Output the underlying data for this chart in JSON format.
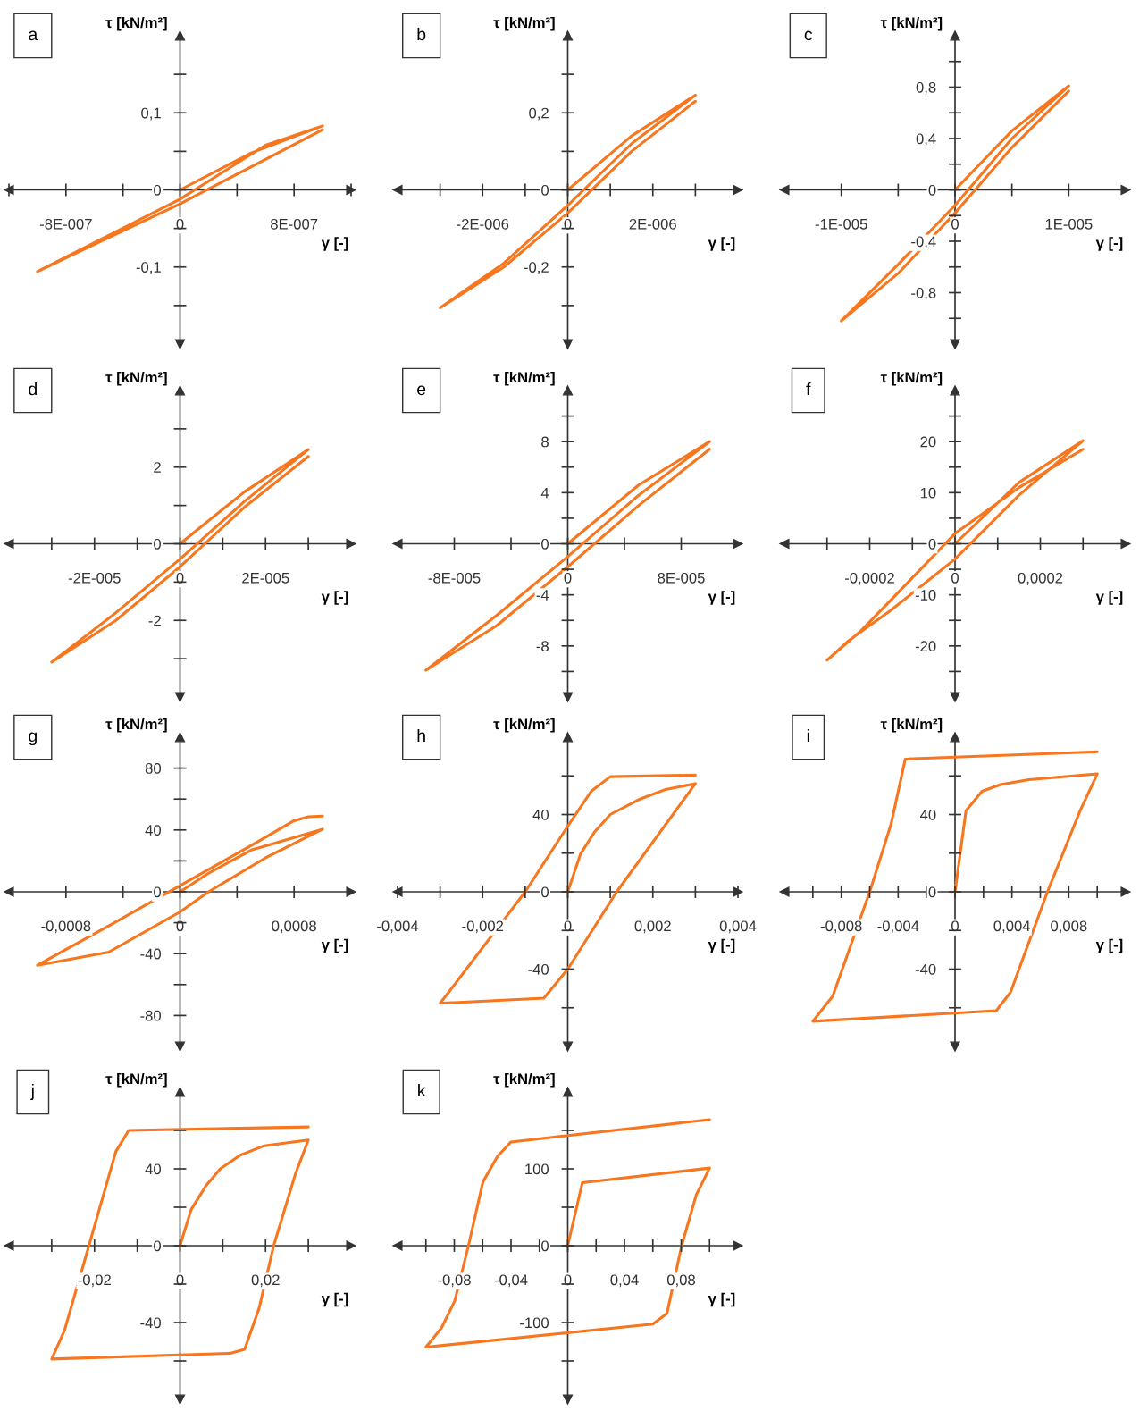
{
  "chart_data": [
    {
      "type": "line",
      "title": "a",
      "xlabel": "γ [-]",
      "ylabel": "τ [kN/m²]",
      "xlim": [
        -1.2e-06,
        1.2e-06
      ],
      "ylim": [
        -0.2,
        0.2
      ],
      "xticks": [
        {
          "value": -1.2e-06,
          "label": null
        },
        {
          "value": -8e-07,
          "label": "-8E-007"
        },
        {
          "value": -4e-07,
          "label": null
        },
        0,
        {
          "value": 4e-07,
          "label": null
        },
        {
          "value": 8e-07,
          "label": "8E-007"
        },
        {
          "value": 1.2e-06,
          "label": null
        }
      ],
      "yticks": [
        {
          "value": -0.15,
          "label": null
        },
        {
          "value": -0.1,
          "label": "-0,1"
        },
        {
          "value": -0.05,
          "label": null
        },
        0,
        {
          "value": 0.05,
          "label": null
        },
        {
          "value": 0.1,
          "label": "0,1"
        },
        {
          "value": 0.15,
          "label": null
        }
      ],
      "series": [
        {
          "color": "#f7761e",
          "x": [
            0,
            5e-07,
            1e-06,
            6e-07,
            0,
            -1e-06,
            -5e-07,
            0,
            5e-07,
            1e-06
          ],
          "values": [
            0,
            0.048,
            0.083,
            0.058,
            -0.012,
            -0.106,
            -0.062,
            -0.018,
            0.03,
            0.078
          ]
        }
      ]
    },
    {
      "type": "line",
      "title": "b",
      "xlabel": "γ [-]",
      "ylabel": "τ [kN/m²]",
      "xlim": [
        -4e-06,
        4e-06
      ],
      "ylim": [
        -0.4,
        0.4
      ],
      "xticks": [
        {
          "value": -3e-06,
          "label": null
        },
        {
          "value": -2e-06,
          "label": "-2E-006"
        },
        {
          "value": -1e-06,
          "label": null
        },
        0,
        {
          "value": 1e-06,
          "label": null
        },
        {
          "value": 2e-06,
          "label": "2E-006"
        },
        {
          "value": 3e-06,
          "label": null
        }
      ],
      "yticks": [
        {
          "value": -0.3,
          "label": null
        },
        {
          "value": -0.2,
          "label": "-0,2"
        },
        {
          "value": -0.1,
          "label": null
        },
        0,
        {
          "value": 0.1,
          "label": null
        },
        {
          "value": 0.2,
          "label": "0,2"
        },
        {
          "value": 0.3,
          "label": null
        }
      ],
      "series": [
        {
          "color": "#f7761e",
          "x": [
            0,
            1.5e-06,
            3e-06,
            1.5e-06,
            0,
            -1.5e-06,
            -3e-06,
            -1.5e-06,
            0,
            1.5e-06,
            3e-06
          ],
          "values": [
            0,
            0.14,
            0.246,
            0.12,
            -0.04,
            -0.19,
            -0.306,
            -0.2,
            -0.06,
            0.1,
            0.23
          ]
        }
      ]
    },
    {
      "type": "line",
      "title": "c",
      "xlabel": "γ [-]",
      "ylabel": "τ [kN/m²]",
      "xlim": [
        -1.5e-05,
        1.5e-05
      ],
      "ylim": [
        -1.2,
        1.2
      ],
      "xticks": [
        {
          "value": -1e-05,
          "label": "-1E-005"
        },
        {
          "value": -5e-06,
          "label": null
        },
        0,
        {
          "value": 5e-06,
          "label": null
        },
        {
          "value": 1e-05,
          "label": "1E-005"
        }
      ],
      "yticks": [
        {
          "value": -1.0,
          "label": null
        },
        {
          "value": -0.8,
          "label": "-0,8"
        },
        {
          "value": -0.6,
          "label": null
        },
        {
          "value": -0.4,
          "label": "-0,4"
        },
        {
          "value": -0.2,
          "label": null
        },
        0,
        {
          "value": 0.2,
          "label": null
        },
        {
          "value": 0.4,
          "label": "0,4"
        },
        {
          "value": 0.6,
          "label": null
        },
        {
          "value": 0.8,
          "label": "0,8"
        },
        {
          "value": 1.0,
          "label": null
        }
      ],
      "series": [
        {
          "color": "#f7761e",
          "x": [
            0,
            5e-06,
            1e-05,
            5e-06,
            0,
            -5e-06,
            -1e-05,
            -5e-06,
            0,
            5e-06,
            1e-05
          ],
          "values": [
            0,
            0.46,
            0.81,
            0.4,
            -0.12,
            -0.58,
            -1.02,
            -0.65,
            -0.18,
            0.33,
            0.77
          ]
        }
      ]
    },
    {
      "type": "line",
      "title": "d",
      "xlabel": "γ [-]",
      "ylabel": "τ [kN/m²]",
      "xlim": [
        -4e-05,
        4e-05
      ],
      "ylim": [
        -4,
        4
      ],
      "xticks": [
        {
          "value": -3e-05,
          "label": null
        },
        {
          "value": -2e-05,
          "label": "-2E-005"
        },
        {
          "value": -1e-05,
          "label": null
        },
        0,
        {
          "value": 1e-05,
          "label": null
        },
        {
          "value": 2e-05,
          "label": "2E-005"
        },
        {
          "value": 3e-05,
          "label": null
        }
      ],
      "yticks": [
        {
          "value": -3,
          "label": null
        },
        -2,
        {
          "value": -1,
          "label": null
        },
        0,
        {
          "value": 1,
          "label": null
        },
        2,
        {
          "value": 3,
          "label": null
        }
      ],
      "series": [
        {
          "color": "#f7761e",
          "x": [
            0,
            1.5e-05,
            3e-05,
            1.5e-05,
            0,
            -1.5e-05,
            -3e-05,
            -1.5e-05,
            0,
            1.5e-05,
            3e-05
          ],
          "values": [
            0,
            1.35,
            2.46,
            1.1,
            -0.4,
            -1.8,
            -3.09,
            -2.0,
            -0.6,
            0.95,
            2.28
          ]
        }
      ]
    },
    {
      "type": "line",
      "title": "e",
      "xlabel": "γ [-]",
      "ylabel": "τ [kN/m²]",
      "xlim": [
        -0.00012,
        0.00012
      ],
      "ylim": [
        -12,
        12
      ],
      "xticks": [
        {
          "value": -8e-05,
          "label": "-8E-005"
        },
        {
          "value": -4e-05,
          "label": null
        },
        0,
        {
          "value": 4e-05,
          "label": null
        },
        {
          "value": 8e-05,
          "label": "8E-005"
        }
      ],
      "yticks": [
        {
          "value": -10,
          "label": null
        },
        -8,
        {
          "value": -6,
          "label": null
        },
        -4,
        {
          "value": -2,
          "label": null
        },
        0,
        {
          "value": 2,
          "label": null
        },
        4,
        {
          "value": 6,
          "label": null
        },
        8,
        {
          "value": 10,
          "label": null
        }
      ],
      "series": [
        {
          "color": "#f7761e",
          "x": [
            0,
            5e-05,
            0.0001,
            5e-05,
            0,
            -5e-05,
            -0.0001,
            -5e-05,
            0,
            5e-05,
            0.0001
          ],
          "values": [
            0,
            4.6,
            8.0,
            3.8,
            -1.0,
            -5.6,
            -9.9,
            -6.4,
            -1.8,
            3.0,
            7.4
          ]
        }
      ]
    },
    {
      "type": "line",
      "title": "f",
      "xlabel": "γ [-]",
      "ylabel": "τ [kN/m²]",
      "xlim": [
        -0.0004,
        0.0004
      ],
      "ylim": [
        -30,
        30
      ],
      "xticks": [
        {
          "value": -0.0003,
          "label": null
        },
        {
          "value": -0.0002,
          "label": "-0,0002"
        },
        {
          "value": -0.0001,
          "label": null
        },
        0,
        {
          "value": 0.0001,
          "label": null
        },
        {
          "value": 0.0002,
          "label": "0,0002"
        },
        {
          "value": 0.0003,
          "label": null
        }
      ],
      "yticks": [
        {
          "value": -25,
          "label": null
        },
        -20,
        {
          "value": -15,
          "label": null
        },
        -10,
        {
          "value": -5,
          "label": null
        },
        0,
        {
          "value": 5,
          "label": null
        },
        10,
        {
          "value": 15,
          "label": null
        },
        20,
        {
          "value": 25,
          "label": null
        }
      ],
      "series": [
        {
          "color": "#f7761e",
          "x": [
            0,
            0.00015,
            0.0003,
            0.00015,
            0,
            -0.00015,
            -0.00025,
            -0.0003,
            -0.00022,
            -0.00015,
            0,
            0.00015,
            0.0003
          ],
          "values": [
            0,
            12,
            20.2,
            9.5,
            -3,
            -13,
            -19,
            -22.8,
            -17,
            -11,
            2,
            11,
            18.5
          ]
        }
      ]
    },
    {
      "type": "line",
      "title": "g",
      "xlabel": "γ [-]",
      "ylabel": "τ [kN/m²]",
      "xlim": [
        -0.0012,
        0.0012
      ],
      "ylim": [
        -100,
        100
      ],
      "xticks": [
        {
          "value": -0.0008,
          "label": "-0,0008"
        },
        {
          "value": -0.0004,
          "label": null
        },
        0,
        {
          "value": 0.0004,
          "label": null
        },
        {
          "value": 0.0008,
          "label": "0,0008"
        }
      ],
      "yticks": [
        -80,
        {
          "value": -60,
          "label": null
        },
        -40,
        {
          "value": -20,
          "label": null
        },
        0,
        {
          "value": 20,
          "label": null
        },
        40,
        {
          "value": 60,
          "label": null
        },
        80
      ],
      "series": [
        {
          "color": "#f7761e",
          "x": [
            0,
            0.0002,
            0.0005,
            0.001,
            0.0006,
            0.0002,
            0,
            -0.0005,
            -0.001,
            -0.0005,
            0,
            0.0005,
            0.0008,
            0.0009,
            0.001
          ],
          "values": [
            0,
            12,
            27,
            40.5,
            22,
            0,
            -13,
            -39,
            -47.5,
            -22,
            4,
            30,
            46,
            48.5,
            49
          ]
        }
      ]
    },
    {
      "type": "line",
      "title": "h",
      "xlabel": "γ [-]",
      "ylabel": "τ [kN/m²]",
      "xlim": [
        -0.004,
        0.004
      ],
      "ylim": [
        -80,
        80
      ],
      "xticks": [
        {
          "value": -0.004,
          "label": "-0,004"
        },
        {
          "value": -0.003,
          "label": null
        },
        {
          "value": -0.002,
          "label": "-0,002"
        },
        {
          "value": -0.001,
          "label": null
        },
        0,
        {
          "value": 0.001,
          "label": null
        },
        {
          "value": 0.002,
          "label": "0,002"
        },
        {
          "value": 0.003,
          "label": null
        },
        {
          "value": 0.004,
          "label": "0,004"
        }
      ],
      "yticks": [
        {
          "value": -60,
          "label": null
        },
        -40,
        {
          "value": -20,
          "label": null
        },
        0,
        {
          "value": 20,
          "label": null
        },
        40,
        {
          "value": 60,
          "label": null
        }
      ],
      "series": [
        {
          "color": "#f7761e",
          "x": [
            0,
            0.0003,
            0.00063,
            0.001,
            0.0017,
            0.0023,
            0.003,
            0.00115,
            0,
            -0.00056,
            -0.003,
            -0.0028,
            -0.001,
            0,
            0.00055,
            0.001,
            0.003
          ],
          "values": [
            0,
            19.6,
            31,
            40,
            48,
            53,
            56,
            0,
            -40,
            -55,
            -57.7,
            -52,
            0,
            34,
            52,
            59.6,
            60.4
          ]
        }
      ]
    },
    {
      "type": "line",
      "title": "i",
      "xlabel": "γ [-]",
      "ylabel": "τ [kN/m²]",
      "xlim": [
        -0.012,
        0.012
      ],
      "ylim": [
        -80,
        80
      ],
      "xticks": [
        {
          "value": -0.01,
          "label": null
        },
        {
          "value": -0.008,
          "label": "-0,008"
        },
        {
          "value": -0.006,
          "label": null
        },
        {
          "value": -0.004,
          "label": "-0,004"
        },
        {
          "value": -0.002,
          "label": null
        },
        0,
        {
          "value": 0.002,
          "label": null
        },
        {
          "value": 0.004,
          "label": "0,004"
        },
        {
          "value": 0.006,
          "label": null
        },
        {
          "value": 0.008,
          "label": "0,008"
        },
        {
          "value": 0.01,
          "label": null
        }
      ],
      "yticks": [
        {
          "value": -60,
          "label": null
        },
        -40,
        {
          "value": -20,
          "label": null
        },
        0,
        {
          "value": 20,
          "label": null
        },
        40,
        {
          "value": 60,
          "label": null
        }
      ],
      "series": [
        {
          "color": "#f7761e",
          "x": [
            0,
            0.00077,
            0.0019,
            0.0032,
            0.0052,
            0.01,
            0.0088,
            0.0065,
            0.0039,
            0.0029,
            -0.01,
            -0.0086,
            -0.006,
            -0.0045,
            -0.0035,
            0.01
          ],
          "values": [
            0,
            42,
            52,
            55.5,
            58,
            61,
            42,
            0,
            -52,
            -61.5,
            -67,
            -54,
            0,
            35,
            68.7,
            72.5
          ]
        }
      ]
    },
    {
      "type": "line",
      "title": "j",
      "xlabel": "γ [-]",
      "ylabel": "τ [kN/m²]",
      "xlim": [
        -0.04,
        0.04
      ],
      "ylim": [
        -80,
        80
      ],
      "xticks": [
        {
          "value": -0.03,
          "label": null
        },
        {
          "value": -0.02,
          "label": "-0,02"
        },
        {
          "value": -0.01,
          "label": null
        },
        0,
        {
          "value": 0.01,
          "label": null
        },
        {
          "value": 0.02,
          "label": "0,02"
        },
        {
          "value": 0.03,
          "label": null
        }
      ],
      "yticks": [
        {
          "value": -60,
          "label": null
        },
        -40,
        {
          "value": -20,
          "label": null
        },
        0,
        {
          "value": 20,
          "label": null
        },
        40,
        {
          "value": 60,
          "label": null
        }
      ],
      "series": [
        {
          "color": "#f7761e",
          "x": [
            0,
            0.0026,
            0.006,
            0.0094,
            0.014,
            0.0197,
            0.03,
            0.027,
            0.0219,
            0.0185,
            0.0151,
            0.0117,
            -0.03,
            -0.027,
            -0.0213,
            -0.015,
            -0.012,
            0.03
          ],
          "values": [
            0,
            18.8,
            31,
            40,
            47,
            52,
            55,
            37.5,
            0,
            -32.5,
            -54,
            -56,
            -59,
            -44,
            0,
            49,
            60,
            61.8
          ]
        }
      ]
    },
    {
      "type": "line",
      "title": "k",
      "xlabel": "γ [-]",
      "ylabel": "τ [kN/m²]",
      "xlim": [
        -0.12,
        0.12
      ],
      "ylim": [
        -200,
        200
      ],
      "xticks": [
        {
          "value": -0.1,
          "label": null
        },
        {
          "value": -0.08,
          "label": "-0,08"
        },
        {
          "value": -0.06,
          "label": null
        },
        {
          "value": -0.04,
          "label": "-0,04"
        },
        {
          "value": -0.02,
          "label": null
        },
        0,
        {
          "value": 0.02,
          "label": null
        },
        {
          "value": 0.04,
          "label": "0,04"
        },
        {
          "value": 0.06,
          "label": null
        },
        {
          "value": 0.08,
          "label": "0,08"
        },
        {
          "value": 0.1,
          "label": null
        }
      ],
      "yticks": [
        {
          "value": -150,
          "label": null
        },
        -100,
        {
          "value": -50,
          "label": null
        },
        0,
        {
          "value": 50,
          "label": null
        },
        100,
        {
          "value": 150,
          "label": null
        }
      ],
      "series": [
        {
          "color": "#f7761e",
          "x": [
            0,
            0.0103,
            0.1,
            0.0906,
            0.0803,
            0.07,
            0.06,
            -0.1,
            -0.089,
            -0.0797,
            -0.07,
            -0.0598,
            -0.0496,
            -0.04,
            0.1
          ],
          "values": [
            0,
            82,
            101,
            66,
            0,
            -88,
            -102,
            -132,
            -107,
            -72,
            0,
            83,
            116,
            135,
            164
          ]
        }
      ]
    }
  ]
}
